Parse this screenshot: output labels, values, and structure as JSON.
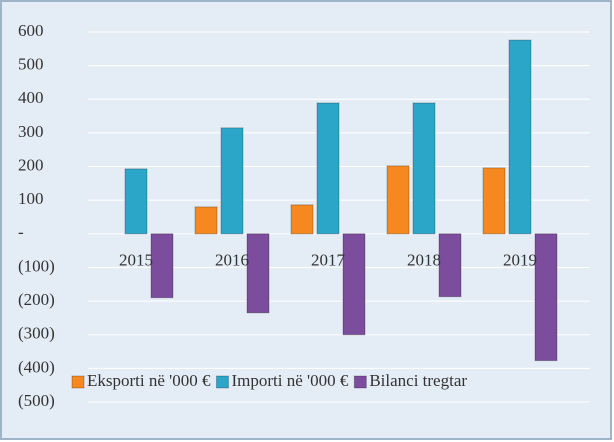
{
  "chart_data": {
    "type": "bar",
    "categories": [
      "2015",
      "2016",
      "2017",
      "2018",
      "2019"
    ],
    "series": [
      {
        "name": "Eksporti në '000 €",
        "color": "#f5891f",
        "values": [
          0,
          80,
          86,
          202,
          196
        ]
      },
      {
        "name": "Importi në '000 €",
        "color": "#2ba6c9",
        "values": [
          193,
          315,
          389,
          389,
          576
        ]
      },
      {
        "name": "Bilanci tregtar",
        "color": "#7b4d9c",
        "values": [
          -190,
          -235,
          -300,
          -187,
          -377
        ]
      }
    ],
    "ylim": [
      -500,
      600
    ],
    "yticks": [
      {
        "value": -500,
        "label": "(500)"
      },
      {
        "value": -400,
        "label": "(400)"
      },
      {
        "value": -300,
        "label": "(300)"
      },
      {
        "value": -200,
        "label": "(200)"
      },
      {
        "value": -100,
        "label": "(100)"
      },
      {
        "value": 0,
        "label": "-"
      },
      100,
      200,
      300,
      400,
      500,
      600
    ],
    "grid": true,
    "legend": "bottom"
  }
}
